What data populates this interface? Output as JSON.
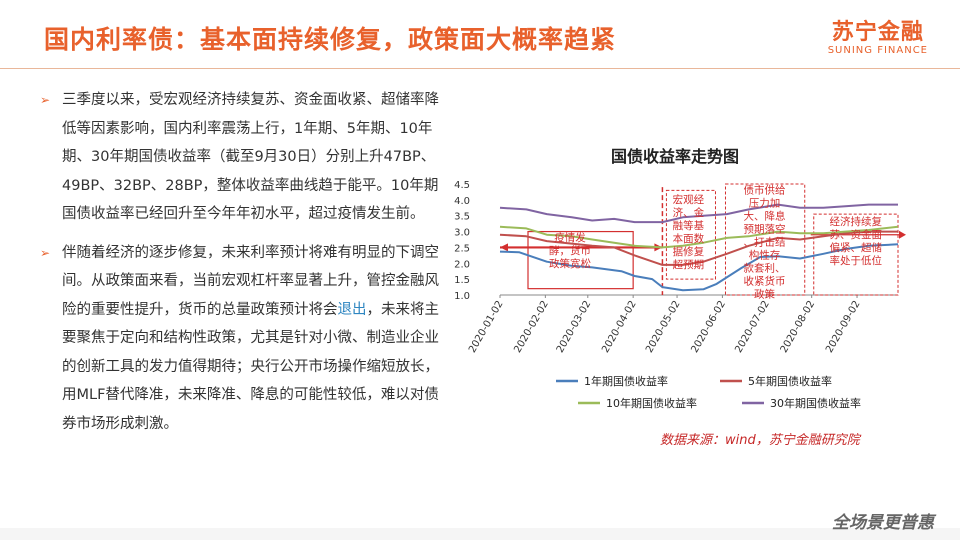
{
  "header": {
    "title": "国内利率债：基本面持续修复，政策面大概率趋紧",
    "logo_cn": "苏宁金融",
    "logo_en": "SUNING FINANCE"
  },
  "bullets": [
    {
      "text_a": "三季度以来，受宏观经济持续复苏、资金面收紧、超储率降低等因素影响，国内利率震荡上行，1年期、5年期、10年期、30年期国债收益率（截至9月30日）分别上升47BP、49BP、32BP、28BP，整体收益率曲线趋于能平。10年期国债收益率已经回升至今年年初水平，超过疫情发生前。"
    },
    {
      "text_a": "伴随着经济的逐步修复，未来利率预计将难有明显的下调空间。从政策面来看，当前宏观杠杆率显著上升，管控金融风险的重要性提升，货币的总量政策预计将会",
      "highlight": "退出",
      "text_b": "，未来将主要聚焦于定向和结构性政策，尤其是针对小微、制造业企业的创新工具的发力值得期待；央行公开市场操作缩短放长，用MLF替代降准，未来降准、降息的可能性较低，难以对债券市场形成刺激。"
    }
  ],
  "source": "数据来源：wind，苏宁金融研究院",
  "footer_logo": "全场景更普惠",
  "colors": {
    "accent": "#e8612c",
    "annotation": "#d32f2f"
  },
  "chart_data": {
    "type": "line",
    "title": "国债收益率走势图",
    "ylim": [
      1.0,
      4.5
    ],
    "yticks": [
      1.0,
      1.5,
      2.0,
      2.5,
      3.0,
      3.5,
      4.0,
      4.5
    ],
    "x_start": "2020-01-02",
    "x_end": "2020-09-30",
    "xticks": [
      "2020-01-02",
      "2020-02-02",
      "2020-03-02",
      "2020-04-02",
      "2020-05-02",
      "2020-06-02",
      "2020-07-02",
      "2020-08-02",
      "2020-09-02"
    ],
    "legend_position": "bottom",
    "series": [
      {
        "name": "1年期国债收益率",
        "color": "#4a7ebb",
        "points": [
          [
            "2020-01-02",
            2.37
          ],
          [
            "2020-01-15",
            2.35
          ],
          [
            "2020-02-03",
            2.05
          ],
          [
            "2020-02-20",
            1.92
          ],
          [
            "2020-03-05",
            1.87
          ],
          [
            "2020-03-25",
            1.75
          ],
          [
            "2020-04-03",
            1.6
          ],
          [
            "2020-04-15",
            1.5
          ],
          [
            "2020-04-22",
            1.25
          ],
          [
            "2020-05-06",
            1.15
          ],
          [
            "2020-05-20",
            1.18
          ],
          [
            "2020-05-29",
            1.35
          ],
          [
            "2020-06-15",
            1.85
          ],
          [
            "2020-06-28",
            2.2
          ],
          [
            "2020-07-10",
            2.22
          ],
          [
            "2020-07-25",
            2.15
          ],
          [
            "2020-08-10",
            2.3
          ],
          [
            "2020-08-25",
            2.45
          ],
          [
            "2020-09-10",
            2.55
          ],
          [
            "2020-09-30",
            2.6
          ]
        ]
      },
      {
        "name": "5年期国债收益率",
        "color": "#c0504d",
        "points": [
          [
            "2020-01-02",
            2.9
          ],
          [
            "2020-01-20",
            2.85
          ],
          [
            "2020-02-03",
            2.7
          ],
          [
            "2020-02-20",
            2.62
          ],
          [
            "2020-03-05",
            2.55
          ],
          [
            "2020-03-20",
            2.5
          ],
          [
            "2020-04-03",
            2.25
          ],
          [
            "2020-04-22",
            1.95
          ],
          [
            "2020-05-06",
            1.95
          ],
          [
            "2020-05-20",
            2.05
          ],
          [
            "2020-06-05",
            2.3
          ],
          [
            "2020-06-20",
            2.55
          ],
          [
            "2020-07-10",
            2.8
          ],
          [
            "2020-07-25",
            2.75
          ],
          [
            "2020-08-10",
            2.85
          ],
          [
            "2020-08-25",
            2.95
          ],
          [
            "2020-09-10",
            3.0
          ],
          [
            "2020-09-30",
            3.0
          ]
        ]
      },
      {
        "name": "10年期国债收益率",
        "color": "#9bbb59",
        "points": [
          [
            "2020-01-02",
            3.15
          ],
          [
            "2020-01-20",
            3.1
          ],
          [
            "2020-02-03",
            2.9
          ],
          [
            "2020-02-20",
            2.85
          ],
          [
            "2020-03-05",
            2.75
          ],
          [
            "2020-03-20",
            2.65
          ],
          [
            "2020-04-03",
            2.55
          ],
          [
            "2020-04-22",
            2.5
          ],
          [
            "2020-05-06",
            2.55
          ],
          [
            "2020-05-20",
            2.65
          ],
          [
            "2020-06-05",
            2.8
          ],
          [
            "2020-06-20",
            2.85
          ],
          [
            "2020-07-10",
            3.0
          ],
          [
            "2020-07-25",
            2.95
          ],
          [
            "2020-08-10",
            2.95
          ],
          [
            "2020-08-25",
            3.0
          ],
          [
            "2020-09-10",
            3.05
          ],
          [
            "2020-09-30",
            3.15
          ]
        ]
      },
      {
        "name": "30年期国债收益率",
        "color": "#8064a2",
        "points": [
          [
            "2020-01-02",
            3.75
          ],
          [
            "2020-01-20",
            3.7
          ],
          [
            "2020-02-03",
            3.55
          ],
          [
            "2020-02-20",
            3.45
          ],
          [
            "2020-03-05",
            3.35
          ],
          [
            "2020-03-20",
            3.4
          ],
          [
            "2020-04-03",
            3.3
          ],
          [
            "2020-04-22",
            3.3
          ],
          [
            "2020-05-06",
            3.45
          ],
          [
            "2020-05-20",
            3.5
          ],
          [
            "2020-06-05",
            3.55
          ],
          [
            "2020-06-20",
            3.7
          ],
          [
            "2020-07-10",
            3.85
          ],
          [
            "2020-07-25",
            3.75
          ],
          [
            "2020-08-10",
            3.75
          ],
          [
            "2020-08-25",
            3.8
          ],
          [
            "2020-09-10",
            3.85
          ],
          [
            "2020-09-30",
            3.85
          ]
        ]
      }
    ],
    "annotations": [
      {
        "label": "疫情发酵，货币政策宽松",
        "start": "2020-01-02",
        "end": "2020-04-22",
        "arrow": "both"
      },
      {
        "label": "宏观经济、金融等基本面数据修复超预期",
        "start": "2020-04-22",
        "end": "2020-05-31",
        "arrow": "none"
      },
      {
        "label": "债市供给压力加大、降息预期落空、打击结构性存款套利、收紧货币政策",
        "start": "2020-05-31",
        "end": "2020-07-31",
        "arrow": "none"
      },
      {
        "label": "经济持续复苏、资金面偏紧、超储率处于低位",
        "start": "2020-07-31",
        "end": "2020-09-30",
        "arrow": "right"
      }
    ]
  }
}
